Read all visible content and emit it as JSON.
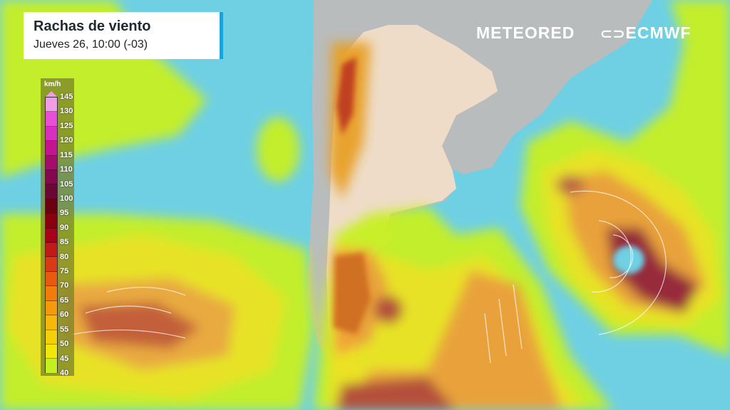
{
  "header": {
    "title": "Rachas de viento",
    "subtitle": "Jueves 26, 10:00 (-03)"
  },
  "legend": {
    "unit": "km/h",
    "labels": [
      "145",
      "130",
      "125",
      "120",
      "115",
      "110",
      "105",
      "100",
      "95",
      "90",
      "85",
      "80",
      "75",
      "70",
      "65",
      "60",
      "55",
      "50",
      "45",
      "40"
    ],
    "colors": [
      "#f29be6",
      "#e84fd6",
      "#d92fbf",
      "#c4148f",
      "#a40d6a",
      "#85084f",
      "#6a0735",
      "#6b0010",
      "#8a0010",
      "#a8001a",
      "#c11a1a",
      "#d83a16",
      "#e85a10",
      "#f07c0c",
      "#f59a0a",
      "#f5b80a",
      "#f5d00a",
      "#f3e60a",
      "#c4f020"
    ]
  },
  "branding": {
    "meteored": "METEORED",
    "ecmwf": "ECMWF"
  },
  "colors": {
    "ocean": "#6fd0e4",
    "land": "#b9bcbc",
    "argentina": "#eedcc8"
  }
}
